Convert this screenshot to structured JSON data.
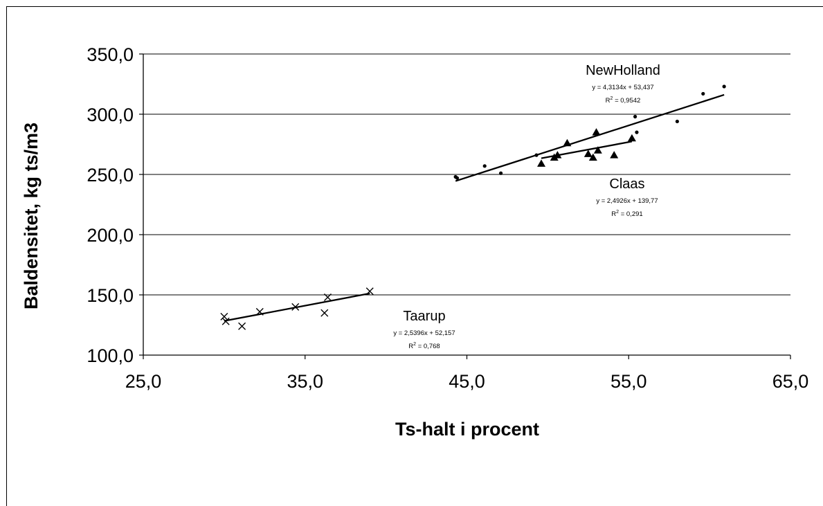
{
  "chart_data": {
    "type": "scatter",
    "xlabel": "Ts-halt i procent",
    "ylabel": "Baldensitet, kg ts/m3",
    "xlim": [
      25,
      65
    ],
    "ylim": [
      100,
      350
    ],
    "x_ticks": [
      "25,0",
      "35,0",
      "45,0",
      "55,0",
      "65,0"
    ],
    "y_ticks": [
      "100,0",
      "150,0",
      "200,0",
      "250,0",
      "300,0",
      "350,0"
    ],
    "grid": "horizontal",
    "series": [
      {
        "name": "NewHolland",
        "marker": "dot",
        "x": [
          44.3,
          44.4,
          46.1,
          47.1,
          49.3,
          55.4,
          55.5,
          58.0,
          59.6,
          60.9
        ],
        "y": [
          248,
          247,
          257,
          251,
          266,
          298,
          285,
          294,
          317,
          323
        ],
        "trendline": {
          "slope": 4.3134,
          "intercept": 53.437,
          "x_range": [
            44.3,
            60.9
          ]
        },
        "equation": "y = 4,3134x + 53,437",
        "r2_label": "R",
        "r2_value": " = 0,9542"
      },
      {
        "name": "Claas",
        "marker": "triangle",
        "x": [
          49.6,
          50.4,
          50.6,
          51.2,
          52.5,
          52.8,
          53.0,
          53.1,
          54.1,
          55.2
        ],
        "y": [
          259,
          264,
          266,
          276,
          267,
          264,
          285,
          270,
          266,
          280
        ],
        "trendline": {
          "slope": 2.4926,
          "intercept": 139.77,
          "x_range": [
            49.6,
            55.2
          ]
        },
        "equation": "y = 2,4926x + 139,77",
        "r2_label": "R",
        "r2_value": " = 0,291"
      },
      {
        "name": "Taarup",
        "marker": "x",
        "x": [
          30.0,
          30.1,
          31.1,
          32.2,
          34.4,
          36.2,
          36.4,
          39.0
        ],
        "y": [
          132,
          128,
          124,
          136,
          140,
          135,
          148,
          153
        ],
        "trendline": {
          "slope": 2.5396,
          "intercept": 52.157,
          "x_range": [
            30.0,
            39.0
          ]
        },
        "equation": "y = 2,5396x + 52,157",
        "r2_label": "R",
        "r2_value": " = 0,768"
      }
    ]
  }
}
